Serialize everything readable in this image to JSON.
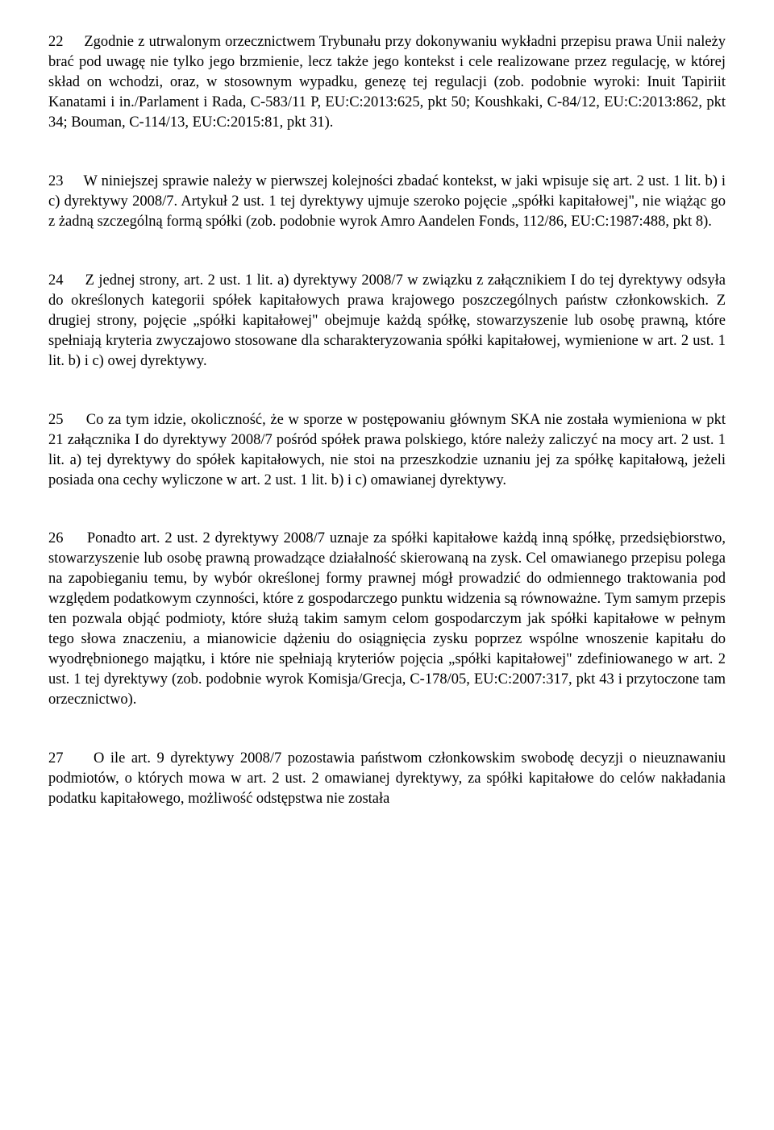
{
  "paragraphs": [
    {
      "num": "22",
      "text": "Zgodnie z utrwalonym orzecznictwem Trybunału przy dokonywaniu wykładni przepisu prawa Unii należy brać pod uwagę nie tylko jego brzmienie, lecz także jego kontekst i cele realizowane przez regulację, w której skład on wchodzi, oraz, w stosownym wypadku, genezę tej regulacji (zob. podobnie wyroki: Inuit Tapiriit Kanatami i in./Parlament i Rada, C‑583/11 P, EU:C:2013:625, pkt 50; Koushkaki, C‑84/12, EU:C:2013:862, pkt 34; Bouman, C‑114/13, EU:C:2015:81, pkt 31)."
    },
    {
      "num": "23",
      "text": "W niniejszej sprawie należy w pierwszej kolejności zbadać kontekst, w jaki wpisuje się art. 2 ust. 1 lit. b) i c) dyrektywy 2008/7. Artykuł 2 ust. 1 tej dyrektywy ujmuje szeroko pojęcie „spółki kapitałowej\", nie wiążąc go z żadną szczególną formą spółki (zob. podobnie wyrok Amro Aandelen Fonds, 112/86, EU:C:1987:488, pkt 8)."
    },
    {
      "num": "24",
      "text": "Z jednej strony, art. 2 ust. 1 lit. a) dyrektywy 2008/7 w związku z załącznikiem I do tej dyrektywy odsyła do określonych kategorii spółek kapitałowych prawa krajowego poszczególnych państw członkowskich. Z drugiej strony, pojęcie „spółki kapitałowej\" obejmuje każdą spółkę, stowarzyszenie lub osobę prawną, które spełniają kryteria zwyczajowo stosowane dla scharakteryzowania spółki kapitałowej, wymienione w art. 2 ust. 1 lit. b) i c) owej dyrektywy."
    },
    {
      "num": "25",
      "text": "Co za tym idzie, okoliczność, że w sporze w postępowaniu głównym SKA nie została wymieniona w pkt 21 załącznika I do dyrektywy 2008/7 pośród spółek prawa polskiego, które należy zaliczyć na mocy art. 2 ust. 1 lit. a) tej dyrektywy do spółek kapitałowych, nie stoi na przeszkodzie uznaniu jej za spółkę kapitałową, jeżeli posiada ona cechy wyliczone w art. 2 ust. 1 lit. b) i c) omawianej dyrektywy."
    },
    {
      "num": "26",
      "text": "Ponadto art. 2 ust. 2 dyrektywy 2008/7 uznaje za spółki kapitałowe każdą inną spółkę, przedsiębiorstwo, stowarzyszenie lub osobę prawną prowadzące działalność skierowaną na zysk. Cel omawianego przepisu polega na zapobieganiu temu, by wybór określonej formy prawnej mógł prowadzić do odmiennego traktowania pod względem podatkowym czynności, które z gospodarczego punktu widzenia są równoważne. Tym samym przepis ten pozwala objąć podmioty, które służą takim samym celom gospodarczym jak spółki kapitałowe w pełnym tego słowa znaczeniu, a mianowicie dążeniu do osiągnięcia zysku poprzez wspólne wnoszenie kapitału do wyodrębnionego majątku, i które nie spełniają kryteriów pojęcia „spółki kapitałowej\" zdefiniowanego w art. 2 ust. 1 tej dyrektywy (zob. podobnie wyrok Komisja/Grecja, C‑178/05, EU:C:2007:317, pkt 43 i przytoczone tam orzecznictwo)."
    },
    {
      "num": "27",
      "text": "O ile art. 9 dyrektywy 2008/7 pozostawia państwom członkowskim swobodę decyzji o nieuznawaniu podmiotów, o których mowa w art. 2 ust. 2 omawianej dyrektywy, za spółki kapitałowe do celów nakładania podatku kapitałowego, możliwość odstępstwa nie została"
    }
  ]
}
